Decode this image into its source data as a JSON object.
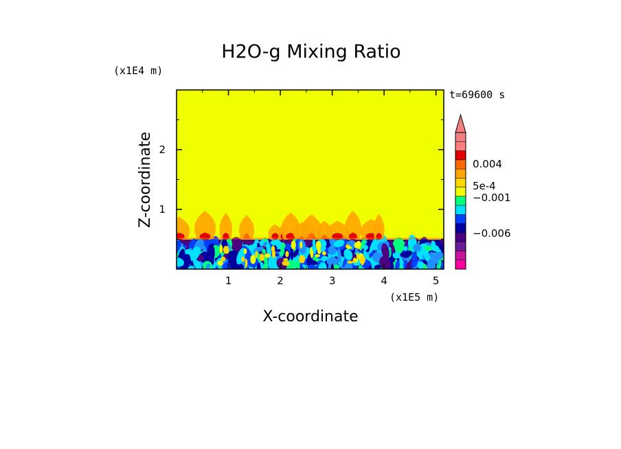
{
  "chart_data": {
    "type": "heatmap",
    "title": "H2O-g Mixing Ratio",
    "xlabel": "X-coordinate",
    "ylabel": "Z-coordinate",
    "x_scale_label": "(x1E5 m)",
    "y_scale_label": "(x1E4 m)",
    "time_label": "t=69600 s",
    "xlim": [
      0,
      5.15
    ],
    "ylim": [
      0,
      3.0
    ],
    "x_ticks": [
      "1",
      "2",
      "3",
      "4",
      "5"
    ],
    "x_tick_values": [
      1,
      2,
      3,
      4,
      5
    ],
    "y_ticks": [
      "1",
      "2"
    ],
    "y_tick_values": [
      1,
      2
    ],
    "mixed_layer_top": 0.5,
    "plume_max_height": 1.05,
    "background_level_color": "#f0ff00",
    "colorbar": {
      "labels": [
        "0.004",
        "5e-4",
        "−0.001",
        "−0.006"
      ],
      "colors": [
        "#ff00a0",
        "#c8149b",
        "#6a1b9a",
        "#4b0082",
        "#0000a0",
        "#0040ff",
        "#00e0ff",
        "#00ff80",
        "#f0ff00",
        "#ffd700",
        "#ffa500",
        "#ff6a00",
        "#e00000",
        "#ff7f7f",
        "#f08080"
      ]
    }
  }
}
